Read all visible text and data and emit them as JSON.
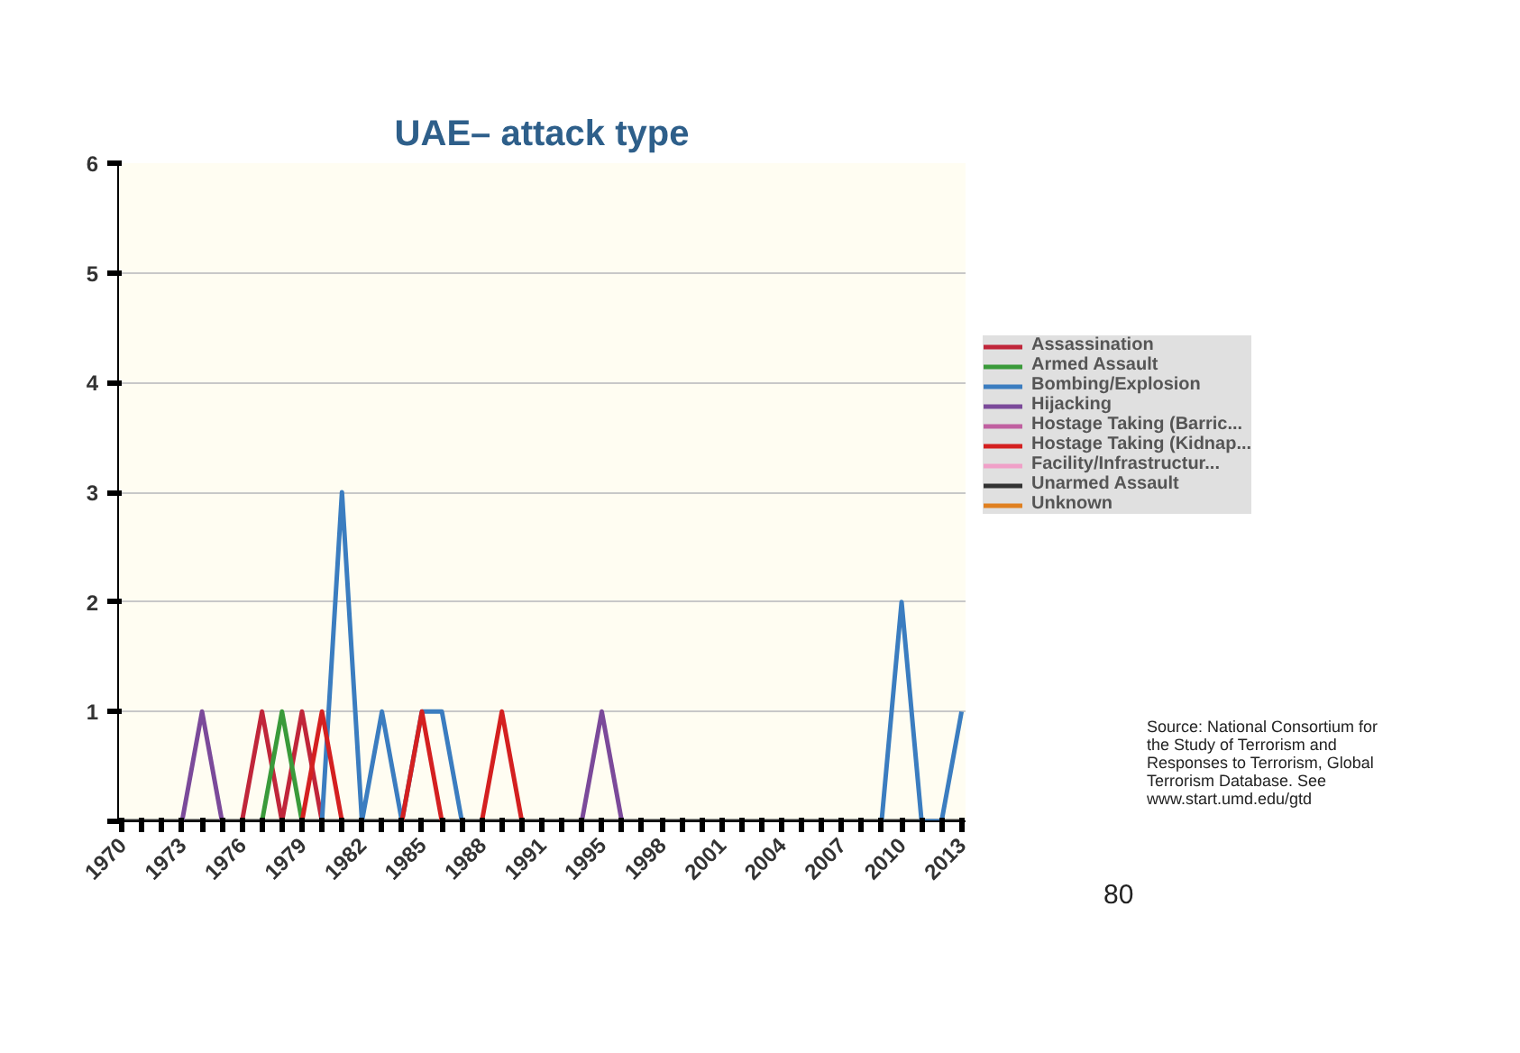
{
  "chart_data": {
    "type": "line",
    "title": "UAE– attack type",
    "categories": [
      "1970",
      null,
      null,
      "1973",
      null,
      null,
      "1976",
      null,
      null,
      "1979",
      null,
      null,
      "1982",
      null,
      null,
      "1985",
      null,
      null,
      "1988",
      null,
      null,
      "1991",
      null,
      null,
      "1995",
      null,
      null,
      "1998",
      null,
      null,
      "2001",
      null,
      null,
      "2004",
      null,
      null,
      "2007",
      null,
      null,
      "2010",
      null,
      null,
      "2013"
    ],
    "series": [
      {
        "name": "Assassination",
        "color": "#c0263a",
        "values": [
          null,
          null,
          null,
          null,
          null,
          null,
          0,
          1,
          0,
          1,
          0,
          null,
          null,
          null,
          null,
          null,
          null,
          null,
          null,
          null,
          null,
          null,
          null,
          null,
          null,
          null,
          null,
          null,
          null,
          null,
          null,
          null,
          null,
          null,
          null,
          null,
          null,
          null,
          null,
          null,
          null,
          null,
          null
        ]
      },
      {
        "name": "Armed Assault",
        "color": "#3a9a3a",
        "values": [
          null,
          null,
          null,
          null,
          null,
          null,
          null,
          0,
          1,
          0,
          null,
          null,
          null,
          null,
          null,
          null,
          null,
          null,
          null,
          null,
          null,
          null,
          null,
          null,
          null,
          null,
          null,
          null,
          null,
          null,
          null,
          null,
          null,
          null,
          null,
          null,
          null,
          null,
          null,
          null,
          null,
          null,
          null
        ]
      },
      {
        "name": "Bombing/Explosion",
        "color": "#3b7dc0",
        "values": [
          null,
          null,
          null,
          null,
          null,
          null,
          null,
          null,
          null,
          null,
          0,
          3,
          0,
          1,
          0,
          1,
          1,
          0,
          null,
          null,
          null,
          null,
          null,
          null,
          null,
          null,
          null,
          null,
          null,
          null,
          null,
          null,
          null,
          null,
          null,
          null,
          null,
          null,
          0,
          2,
          0,
          0,
          1
        ]
      },
      {
        "name": "Hijacking",
        "color": "#7b4a9a",
        "values": [
          null,
          null,
          null,
          0,
          1,
          0,
          null,
          null,
          null,
          null,
          null,
          null,
          null,
          null,
          null,
          null,
          null,
          null,
          null,
          null,
          null,
          null,
          null,
          0,
          1,
          0,
          null,
          null,
          null,
          null,
          null,
          null,
          null,
          null,
          null,
          null,
          null,
          null,
          null,
          null,
          null,
          null,
          null
        ]
      },
      {
        "name": "Hostage Taking (Barric...",
        "color": "#c060a0",
        "values": [
          null,
          null,
          null,
          null,
          null,
          null,
          null,
          null,
          null,
          null,
          null,
          null,
          null,
          null,
          null,
          null,
          null,
          null,
          null,
          null,
          null,
          null,
          null,
          null,
          null,
          null,
          null,
          null,
          null,
          null,
          null,
          null,
          null,
          null,
          null,
          null,
          null,
          null,
          null,
          null,
          null,
          null,
          null
        ]
      },
      {
        "name": "Hostage Taking (Kidnap...",
        "color": "#d42020",
        "values": [
          null,
          null,
          null,
          null,
          null,
          null,
          null,
          null,
          null,
          0,
          1,
          0,
          null,
          null,
          0,
          1,
          0,
          null,
          0,
          1,
          0,
          null,
          null,
          null,
          null,
          null,
          null,
          null,
          null,
          null,
          null,
          null,
          null,
          null,
          null,
          null,
          null,
          null,
          null,
          null,
          null,
          null,
          null
        ]
      },
      {
        "name": "Facility/Infrastructur...",
        "color": "#f0a0c8",
        "values": [
          null,
          null,
          null,
          null,
          null,
          null,
          null,
          null,
          null,
          null,
          null,
          null,
          null,
          null,
          null,
          null,
          null,
          null,
          null,
          null,
          null,
          null,
          null,
          null,
          null,
          null,
          null,
          null,
          null,
          null,
          null,
          null,
          null,
          null,
          null,
          null,
          null,
          null,
          null,
          null,
          null,
          null,
          null
        ]
      },
      {
        "name": "Unarmed Assault",
        "color": "#333333",
        "values": [
          0,
          0,
          0,
          0,
          0,
          0,
          0,
          0,
          0,
          0,
          0,
          0,
          0,
          0,
          0,
          0,
          0,
          0,
          0,
          0,
          0,
          0,
          0,
          0,
          0,
          0,
          0,
          0,
          0,
          0,
          0,
          0,
          0,
          0,
          0,
          0,
          0,
          0,
          0,
          0,
          0,
          0,
          0
        ]
      },
      {
        "name": "Unknown",
        "color": "#e08020",
        "values": [
          null,
          null,
          null,
          null,
          null,
          null,
          null,
          null,
          null,
          null,
          null,
          null,
          null,
          null,
          null,
          null,
          null,
          null,
          null,
          null,
          null,
          null,
          null,
          null,
          null,
          null,
          null,
          null,
          null,
          null,
          null,
          null,
          null,
          null,
          null,
          null,
          null,
          null,
          null,
          null,
          null,
          null,
          null
        ]
      }
    ],
    "ylim": [
      0,
      6
    ],
    "yticks": [
      {
        "value": 0,
        "label": null
      },
      1,
      2,
      3,
      4,
      5,
      6
    ],
    "grid": "y",
    "legend": "right",
    "annotations": [
      "Source: National Consortium for\nthe Study of Terrorism and\nResponses to Terrorism, Global\nTerrorism Database. See\nwww.start.umd.edu/gtd",
      "80"
    ]
  }
}
